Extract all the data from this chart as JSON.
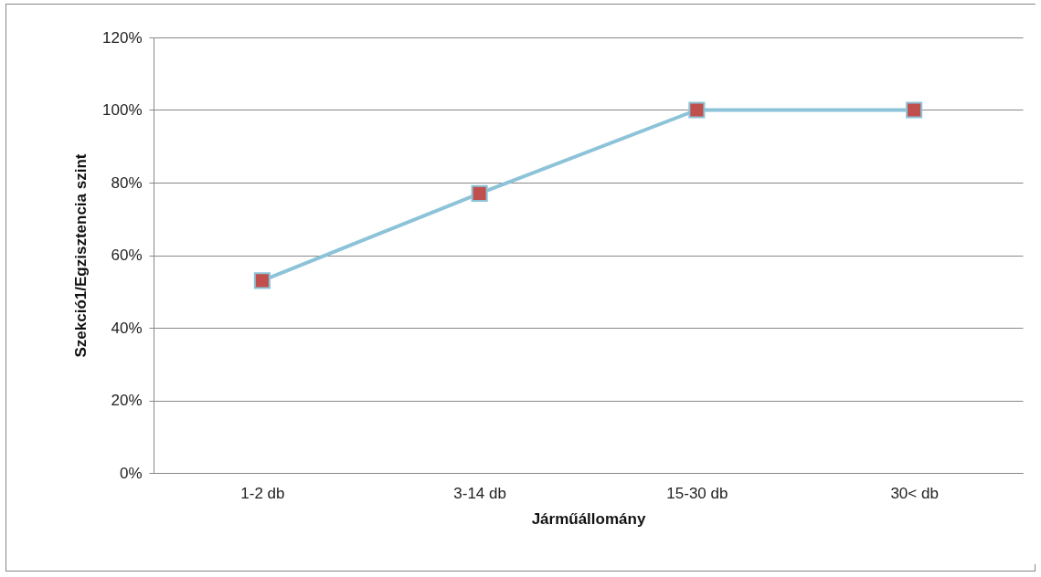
{
  "chart_data": {
    "type": "line",
    "xlabel": "Járműállomány",
    "ylabel": "Szekció1/Egzisztencia szint",
    "categories": [
      "1-2 db",
      "3-14 db",
      "15-30 db",
      "30< db"
    ],
    "series": [
      {
        "color": "#8cc3d8",
        "colors": [
          "#c0504d",
          "#c0504d",
          "#c0504d",
          "#c0504d"
        ],
        "values": [
          53,
          77,
          100,
          100
        ]
      }
    ],
    "ylim": [
      0,
      120
    ],
    "yticks": [
      {
        "value": 0,
        "label": "0%"
      },
      {
        "value": 20,
        "label": "20%"
      },
      {
        "value": 40,
        "label": "40%"
      },
      {
        "value": 60,
        "label": "60%"
      },
      {
        "value": 80,
        "label": "80%"
      },
      {
        "value": 100,
        "label": "100%"
      },
      {
        "value": 120,
        "label": "120%"
      }
    ],
    "grid": "y",
    "marker": "square"
  }
}
